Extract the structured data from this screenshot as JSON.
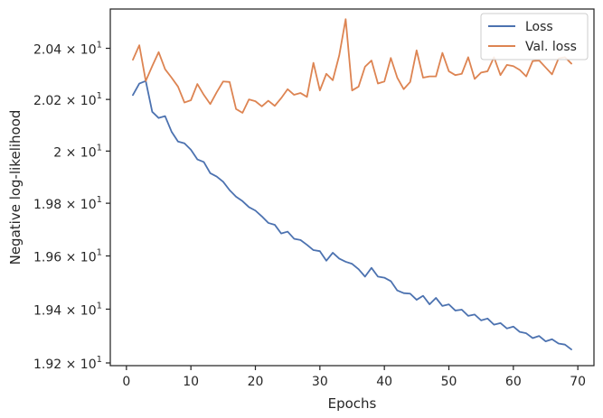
{
  "chart_data": {
    "type": "line",
    "xlabel": "Epochs",
    "ylabel": "Negative log-likelihood",
    "xlim": [
      -2.5,
      72.5
    ],
    "ylim": [
      19.19,
      20.555
    ],
    "x_ticks": [
      0,
      10,
      20,
      30,
      40,
      50,
      60,
      70
    ],
    "x_tick_labels": [
      "0",
      "10",
      "20",
      "30",
      "40",
      "50",
      "60",
      "70"
    ],
    "y_ticks": [
      19.2,
      19.4,
      19.6,
      19.8,
      20.0,
      20.2,
      20.4
    ],
    "y_tick_labels": [
      {
        "mantissa": "1.92",
        "exp": "1"
      },
      {
        "mantissa": "1.94",
        "exp": "1"
      },
      {
        "mantissa": "1.96",
        "exp": "1"
      },
      {
        "mantissa": "1.98",
        "exp": "1"
      },
      {
        "mantissa": "2",
        "exp": "1"
      },
      {
        "mantissa": "2.02",
        "exp": "1"
      },
      {
        "mantissa": "2.04",
        "exp": "1"
      }
    ],
    "y_scale": "log",
    "grid": false,
    "legend_position": "top-right",
    "x": [
      1,
      2,
      3,
      4,
      5,
      6,
      7,
      8,
      9,
      10,
      11,
      12,
      13,
      14,
      15,
      16,
      17,
      18,
      19,
      20,
      21,
      22,
      23,
      24,
      25,
      26,
      27,
      28,
      29,
      30,
      31,
      32,
      33,
      34,
      35,
      36,
      37,
      38,
      39,
      40,
      41,
      42,
      43,
      44,
      45,
      46,
      47,
      48,
      49,
      50,
      51,
      52,
      53,
      54,
      55,
      56,
      57,
      58,
      59,
      60,
      61,
      62,
      63,
      64,
      65,
      66,
      67,
      68,
      69
    ],
    "series": [
      {
        "name": "Loss",
        "color": "#4c72b0",
        "values": [
          20.217,
          20.262,
          20.272,
          20.152,
          20.128,
          20.135,
          20.075,
          20.037,
          20.03,
          20.005,
          19.968,
          19.958,
          19.915,
          19.902,
          19.882,
          19.85,
          19.825,
          19.808,
          19.785,
          19.772,
          19.75,
          19.725,
          19.718,
          19.685,
          19.692,
          19.665,
          19.66,
          19.642,
          19.622,
          19.618,
          19.582,
          19.612,
          19.59,
          19.578,
          19.57,
          19.55,
          19.522,
          19.555,
          19.522,
          19.518,
          19.505,
          19.47,
          19.46,
          19.458,
          19.435,
          19.45,
          19.418,
          19.442,
          19.412,
          19.418,
          19.395,
          19.398,
          19.375,
          19.38,
          19.358,
          19.365,
          19.342,
          19.348,
          19.328,
          19.335,
          19.315,
          19.31,
          19.292,
          19.3,
          19.28,
          19.288,
          19.272,
          19.268,
          19.25
        ]
      },
      {
        "name": "Val. loss",
        "color": "#dd8452",
        "values": [
          20.355,
          20.412,
          20.272,
          20.33,
          20.385,
          20.318,
          20.285,
          20.25,
          20.188,
          20.197,
          20.26,
          20.218,
          20.182,
          20.228,
          20.27,
          20.268,
          20.163,
          20.148,
          20.2,
          20.193,
          20.173,
          20.195,
          20.175,
          20.205,
          20.24,
          20.218,
          20.225,
          20.21,
          20.343,
          20.235,
          20.3,
          20.275,
          20.372,
          20.515,
          20.235,
          20.25,
          20.328,
          20.352,
          20.262,
          20.27,
          20.362,
          20.285,
          20.24,
          20.268,
          20.392,
          20.285,
          20.29,
          20.29,
          20.382,
          20.31,
          20.295,
          20.3,
          20.365,
          20.28,
          20.305,
          20.31,
          20.365,
          20.295,
          20.335,
          20.33,
          20.315,
          20.29,
          20.35,
          20.352,
          20.325,
          20.298,
          20.36,
          20.365,
          20.34
        ]
      }
    ]
  }
}
